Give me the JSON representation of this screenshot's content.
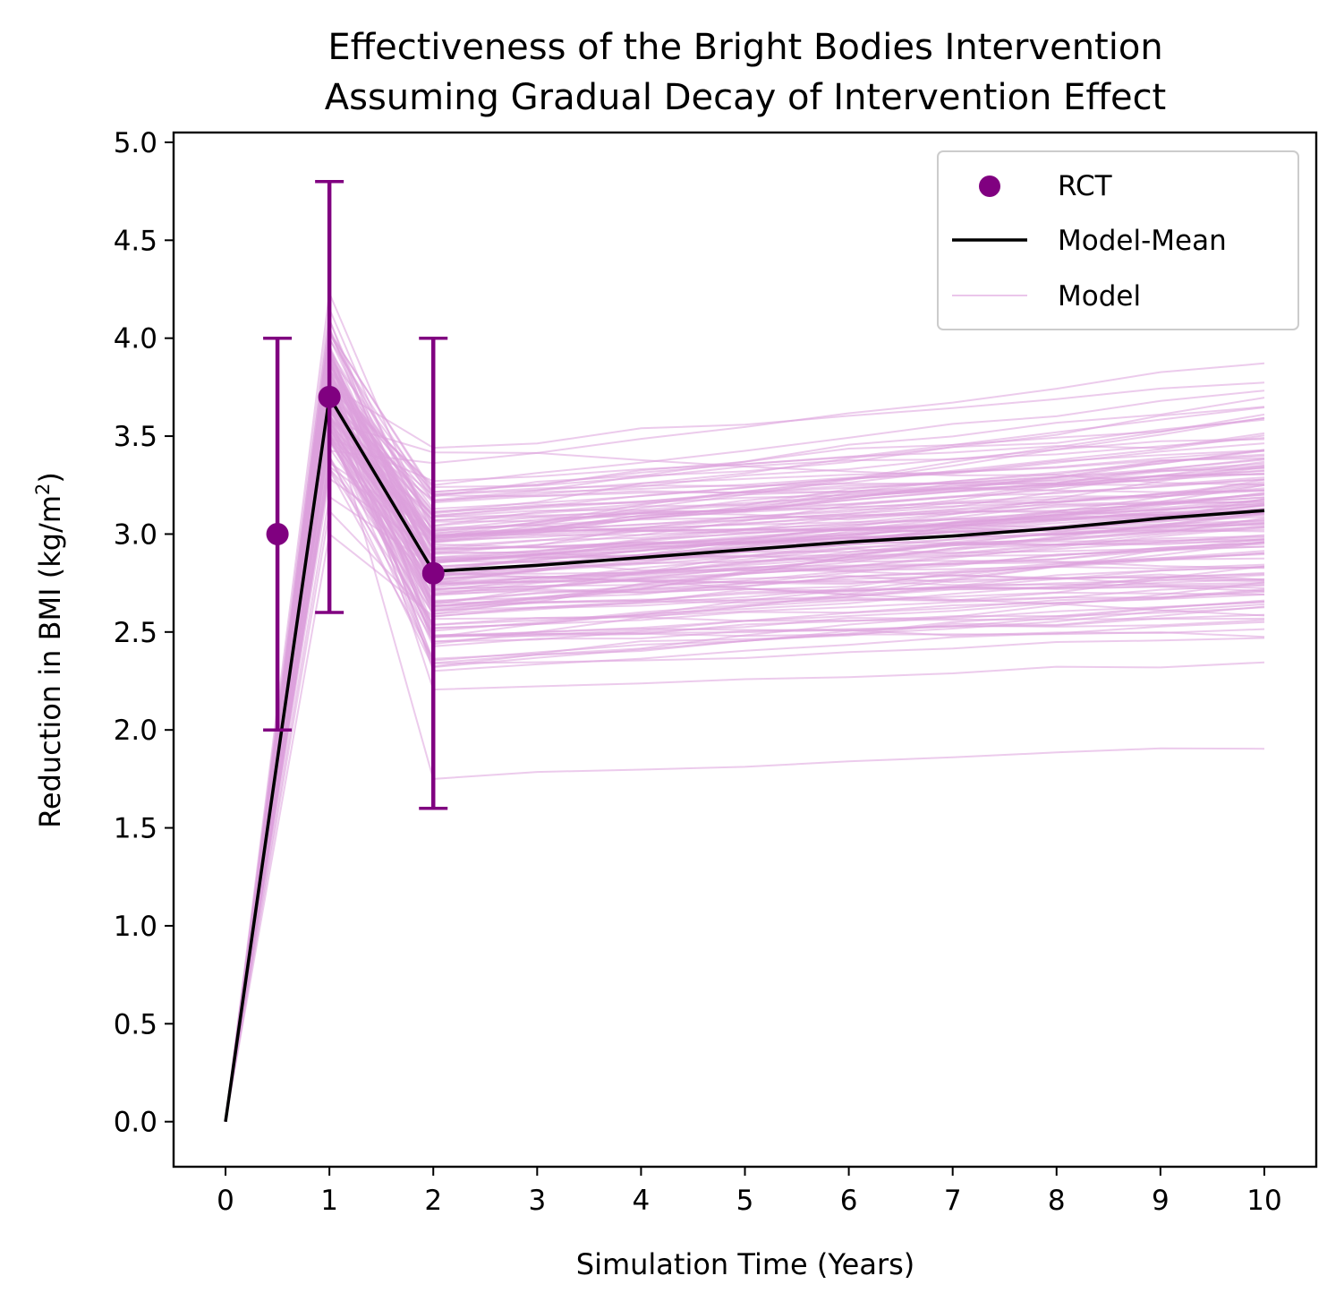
{
  "chart_data": {
    "type": "line",
    "title_line1": "Effectiveness of the Bright Bodies Intervention",
    "title_line2": "Assuming Gradual Decay of Intervention Effect",
    "xlabel": "Simulation Time (Years)",
    "ylabel_main": "Reduction in BMI (kg/m",
    "ylabel_sup": "2",
    "ylabel_close": ")",
    "xlim": [
      -0.5,
      10.5
    ],
    "ylim": [
      -0.23,
      5.05
    ],
    "x_ticks": [
      0,
      1,
      2,
      3,
      4,
      5,
      6,
      7,
      8,
      9,
      10
    ],
    "x_tick_labels": [
      "0",
      "1",
      "2",
      "3",
      "4",
      "5",
      "6",
      "7",
      "8",
      "9",
      "10"
    ],
    "y_ticks": [
      0.0,
      0.5,
      1.0,
      1.5,
      2.0,
      2.5,
      3.0,
      3.5,
      4.0,
      4.5,
      5.0
    ],
    "y_tick_labels": [
      "0.0",
      "0.5",
      "1.0",
      "1.5",
      "2.0",
      "2.5",
      "3.0",
      "3.5",
      "4.0",
      "4.5",
      "5.0"
    ],
    "legend_position": "top-right",
    "legend": [
      {
        "label": "RCT",
        "kind": "marker"
      },
      {
        "label": "Model-Mean",
        "kind": "line"
      },
      {
        "label": "Model",
        "kind": "thin-line"
      }
    ],
    "colors": {
      "rct": "#800080",
      "mean": "#000000",
      "model": "#dda0dd"
    },
    "model_mean": {
      "name": "Model-Mean",
      "x": [
        0,
        1,
        2,
        3,
        4,
        5,
        6,
        7,
        8,
        9,
        10
      ],
      "y": [
        0.0,
        3.7,
        2.81,
        2.84,
        2.88,
        2.92,
        2.96,
        2.99,
        3.03,
        3.08,
        3.12
      ]
    },
    "rct": {
      "name": "RCT",
      "x": [
        0.5,
        1,
        2
      ],
      "y": [
        3.0,
        3.7,
        2.8
      ],
      "err_low": [
        2.0,
        2.6,
        1.6
      ],
      "err_high": [
        4.0,
        4.8,
        4.0
      ]
    },
    "model_runs_summary": {
      "name": "Model",
      "count_approx": 150,
      "x": [
        0,
        1,
        2,
        10
      ],
      "y_range_at_x1": [
        3.0,
        4.4
      ],
      "y_range_at_x2": [
        1.75,
        3.52
      ],
      "y_range_at_x10": [
        1.93,
        3.92
      ]
    }
  }
}
